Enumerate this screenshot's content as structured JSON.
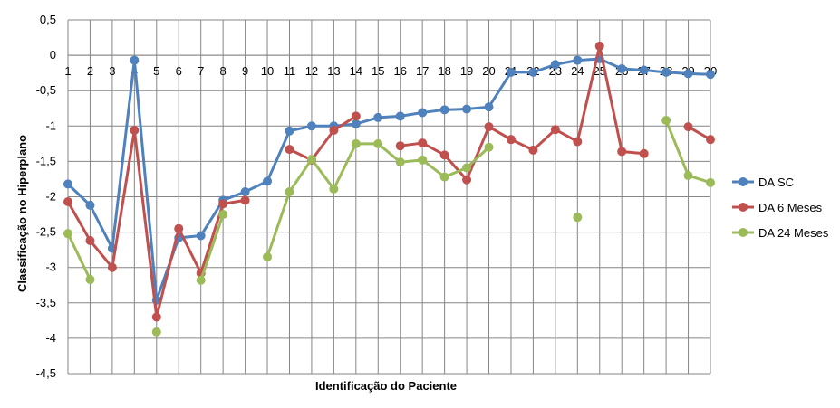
{
  "chart_data": {
    "type": "line",
    "title": "",
    "xlabel": "Identificação do Paciente",
    "ylabel": "Classificação no Hiperplano",
    "ylim": [
      -4.5,
      0.5
    ],
    "y_ticks": [
      "0,5",
      "0",
      "-0,5",
      "-1",
      "-1,5",
      "-2",
      "-2,5",
      "-3",
      "-3,5",
      "-4",
      "-4,5"
    ],
    "categories": [
      "1",
      "2",
      "3",
      "4",
      "5",
      "6",
      "7",
      "8",
      "9",
      "10",
      "11",
      "12",
      "13",
      "14",
      "15",
      "16",
      "17",
      "18",
      "19",
      "20",
      "21",
      "22",
      "23",
      "24",
      "25",
      "26",
      "27",
      "28",
      "29",
      "30"
    ],
    "grid": true,
    "legend_position": "right",
    "series": [
      {
        "name": "DA SC",
        "color": "#4F81BD",
        "values": [
          -1.82,
          -2.12,
          -2.73,
          -0.07,
          -3.46,
          -2.58,
          -2.55,
          -2.05,
          -1.93,
          -1.78,
          -1.07,
          -1.0,
          -1.0,
          -0.97,
          -0.88,
          -0.86,
          -0.81,
          -0.77,
          -0.76,
          -0.73,
          -0.24,
          -0.24,
          -0.13,
          -0.07,
          -0.05,
          -0.19,
          -0.21,
          -0.24,
          -0.26,
          -0.27
        ]
      },
      {
        "name": "DA 6 Meses",
        "color": "#C0504D",
        "values": [
          -2.07,
          -2.62,
          -3.0,
          -1.06,
          -3.7,
          -2.45,
          -3.08,
          -2.1,
          -2.05,
          null,
          -1.33,
          -1.48,
          -1.06,
          -0.86,
          null,
          -1.28,
          -1.24,
          -1.41,
          -1.76,
          -1.01,
          -1.19,
          -1.34,
          -1.05,
          -1.22,
          0.13,
          -1.36,
          -1.39,
          null,
          -1.01,
          -1.19
        ]
      },
      {
        "name": "DA 24 Meses",
        "color": "#9BBB59",
        "values": [
          -2.52,
          -3.17,
          null,
          null,
          -3.91,
          null,
          -3.18,
          -2.25,
          null,
          -2.85,
          -1.93,
          -1.47,
          -1.89,
          -1.25,
          -1.25,
          -1.51,
          -1.48,
          -1.72,
          -1.59,
          -1.3,
          null,
          null,
          null,
          -2.29,
          null,
          null,
          null,
          -0.92,
          -1.7,
          -1.8
        ]
      }
    ]
  }
}
